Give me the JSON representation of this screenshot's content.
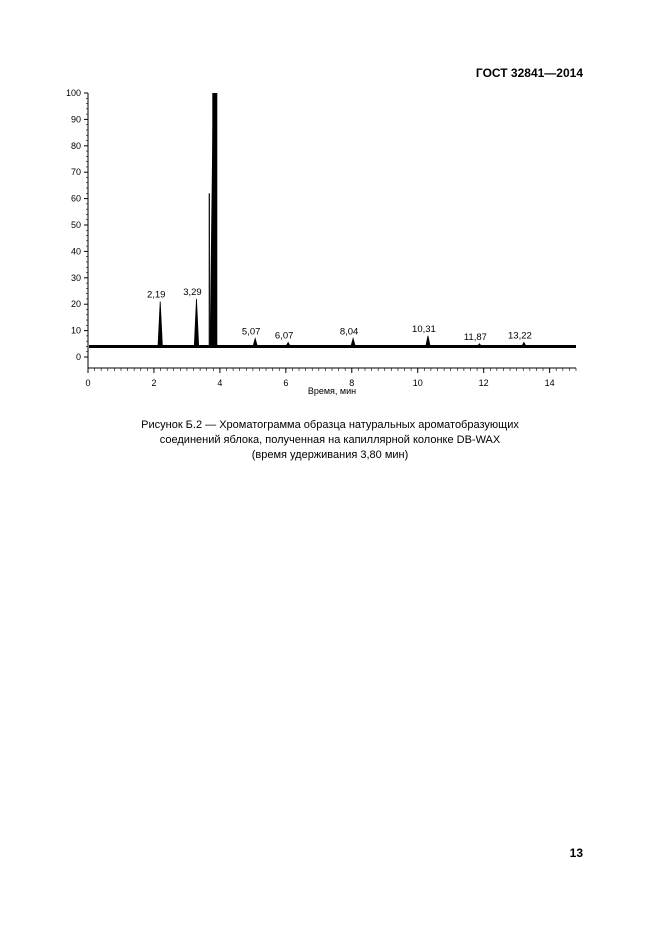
{
  "header": {
    "standard_code": "ГОСТ 32841—2014"
  },
  "chart_data": {
    "type": "line",
    "xlabel": "Время, мин",
    "ylabel": "",
    "xlim": [
      0,
      14.8
    ],
    "ylim": [
      0,
      100
    ],
    "x_ticks": [
      0,
      2,
      4,
      6,
      8,
      10,
      12,
      14
    ],
    "y_ticks": [
      0,
      10,
      20,
      30,
      40,
      50,
      60,
      70,
      80,
      90,
      100
    ],
    "baseline": 4,
    "grid": false,
    "peaks": [
      {
        "x": 2.19,
        "y": 21,
        "label": "2,19"
      },
      {
        "x": 3.29,
        "y": 22,
        "label": "3,29"
      },
      {
        "x": 3.8,
        "y": 100,
        "label": ""
      },
      {
        "x": 5.07,
        "y": 7,
        "label": "5,07"
      },
      {
        "x": 6.07,
        "y": 5.5,
        "label": "6,07"
      },
      {
        "x": 8.04,
        "y": 7,
        "label": "8,04"
      },
      {
        "x": 10.31,
        "y": 8,
        "label": "10,31"
      },
      {
        "x": 11.87,
        "y": 5,
        "label": "11,87"
      },
      {
        "x": 13.22,
        "y": 5.5,
        "label": "13,22"
      }
    ]
  },
  "caption": {
    "line1": "Рисунок Б.2 — Хроматограмма образца натуральных ароматобразующих",
    "line2": "соединений яблока, полученная на капиллярной колонке DB-WAX",
    "line3": "(время удерживания 3,80 мин)"
  },
  "footer": {
    "page_number": "13"
  }
}
